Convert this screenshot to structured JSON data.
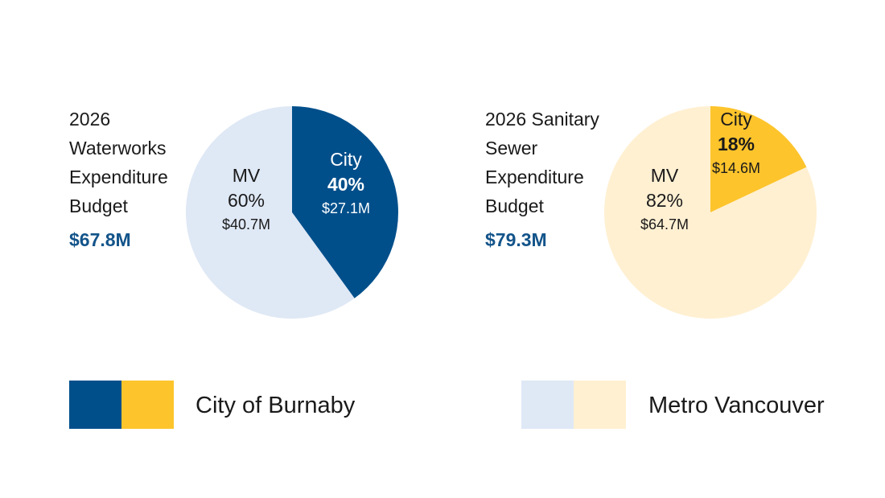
{
  "chart_data": [
    {
      "type": "pie",
      "title": "2026 Waterworks Expenditure Budget",
      "title_lines": [
        "2026",
        "Waterworks",
        "Expenditure",
        "Budget"
      ],
      "total": "$67.8M",
      "slices": [
        {
          "label": "City",
          "percent": 40,
          "percent_label": "40%",
          "amount": "$27.1M",
          "color": "#004f8b",
          "text_color": "#ffffff"
        },
        {
          "label": "MV",
          "percent": 60,
          "percent_label": "60%",
          "amount": "$40.7M",
          "color": "#dfe8f5",
          "text_color": "#1a1a1a"
        }
      ]
    },
    {
      "type": "pie",
      "title": "2026 Sanitary Sewer Expenditure Budget",
      "title_lines": [
        "2026 Sanitary",
        "Sewer",
        "Expenditure",
        "Budget"
      ],
      "total": "$79.3M",
      "slices": [
        {
          "label": "City",
          "percent": 18,
          "percent_label": "18%",
          "amount": "$14.6M",
          "color": "#fdc42c",
          "text_color": "#1a1a1a"
        },
        {
          "label": "MV",
          "percent": 82,
          "percent_label": "82%",
          "amount": "$64.7M",
          "color": "#fff0d2",
          "text_color": "#1a1a1a"
        }
      ]
    }
  ],
  "legend": [
    {
      "label": "City of Burnaby",
      "colors": [
        "#004f8b",
        "#fdc42c"
      ]
    },
    {
      "label": "Metro Vancouver",
      "colors": [
        "#dfe8f5",
        "#fff0d2"
      ]
    }
  ]
}
